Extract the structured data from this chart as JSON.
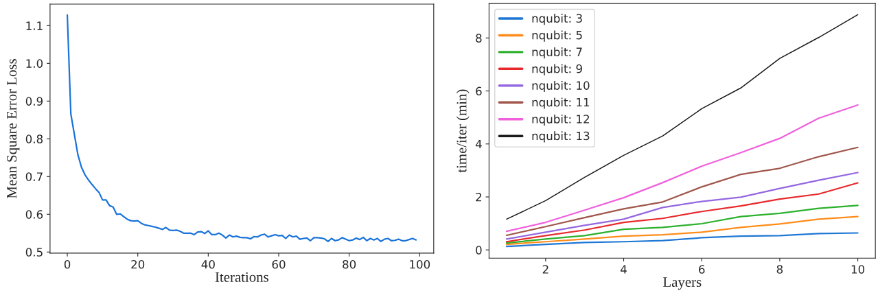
{
  "chart_data": [
    {
      "type": "line",
      "xlabel": "Iterations",
      "ylabel": "Mean Square Error Loss",
      "xlim": [
        -4.9,
        104
      ],
      "ylim": [
        0.497,
        1.157
      ],
      "xticks": [
        0,
        20,
        40,
        60,
        80,
        100
      ],
      "yticks": [
        0.5,
        0.6,
        0.7,
        0.8,
        0.9,
        {
          "value": 1.0,
          "label": "1.0"
        },
        1.1
      ],
      "grid": false,
      "legend": false,
      "x": [
        0,
        1,
        2,
        3,
        4,
        5,
        6,
        7,
        8,
        9,
        10,
        11,
        12,
        13,
        14,
        15,
        16,
        17,
        18,
        19,
        20,
        21,
        22,
        23,
        24,
        25,
        26,
        27,
        28,
        29,
        30,
        31,
        32,
        33,
        34,
        35,
        36,
        37,
        38,
        39,
        40,
        41,
        42,
        43,
        44,
        45,
        46,
        47,
        48,
        49,
        50,
        51,
        52,
        53,
        54,
        55,
        56,
        57,
        58,
        59,
        60,
        61,
        62,
        63,
        64,
        65,
        66,
        67,
        68,
        69,
        70,
        71,
        72,
        73,
        74,
        75,
        76,
        77,
        78,
        79,
        80,
        81,
        82,
        83,
        84,
        85,
        86,
        87,
        88,
        89,
        90,
        91,
        92,
        93,
        94,
        95,
        96,
        97,
        98,
        99
      ],
      "series": [
        {
          "color": "#1a73d9",
          "values": [
            1.128,
            0.866,
            0.812,
            0.758,
            0.725,
            0.705,
            0.691,
            0.679,
            0.668,
            0.658,
            0.638,
            0.638,
            0.623,
            0.619,
            0.6,
            0.601,
            0.594,
            0.587,
            0.583,
            0.582,
            0.583,
            0.576,
            0.572,
            0.57,
            0.568,
            0.566,
            0.563,
            0.56,
            0.565,
            0.558,
            0.557,
            0.558,
            0.555,
            0.55,
            0.55,
            0.55,
            0.546,
            0.553,
            0.554,
            0.549,
            0.556,
            0.546,
            0.546,
            0.55,
            0.545,
            0.537,
            0.545,
            0.54,
            0.542,
            0.539,
            0.538,
            0.538,
            0.535,
            0.541,
            0.54,
            0.545,
            0.547,
            0.54,
            0.543,
            0.546,
            0.543,
            0.544,
            0.536,
            0.545,
            0.54,
            0.542,
            0.534,
            0.536,
            0.537,
            0.53,
            0.538,
            0.538,
            0.537,
            0.535,
            0.528,
            0.536,
            0.53,
            0.532,
            0.538,
            0.534,
            0.53,
            0.532,
            0.537,
            0.533,
            0.539,
            0.53,
            0.536,
            0.532,
            0.536,
            0.528,
            0.534,
            0.536,
            0.53,
            0.531,
            0.534,
            0.53,
            0.53,
            0.533,
            0.536,
            0.532
          ]
        }
      ]
    },
    {
      "type": "line",
      "xlabel": "Layers",
      "ylabel": "time/iter (min)",
      "xlim": [
        0.55,
        10.45
      ],
      "ylim": [
        -0.31,
        9.3
      ],
      "xticks": [
        2,
        4,
        6,
        8,
        10
      ],
      "yticks": [
        0,
        2,
        4,
        6,
        8
      ],
      "grid": false,
      "legend": "top left",
      "x": [
        1,
        2,
        3,
        4,
        5,
        6,
        7,
        8,
        9,
        10
      ],
      "series": [
        {
          "name": "nqubit: 3",
          "color": "#1f77d4",
          "values": [
            0.13,
            0.21,
            0.28,
            0.31,
            0.35,
            0.46,
            0.52,
            0.54,
            0.62,
            0.64
          ]
        },
        {
          "name": "nqubit: 5",
          "color": "#ff8c1a",
          "values": [
            0.21,
            0.31,
            0.41,
            0.52,
            0.57,
            0.67,
            0.85,
            0.98,
            1.16,
            1.26
          ]
        },
        {
          "name": "nqubit: 7",
          "color": "#2cb02c",
          "values": [
            0.26,
            0.41,
            0.54,
            0.78,
            0.85,
            0.99,
            1.26,
            1.38,
            1.57,
            1.68
          ]
        },
        {
          "name": "nqubit: 9",
          "color": "#e8282a",
          "values": [
            0.31,
            0.54,
            0.75,
            1.04,
            1.19,
            1.45,
            1.66,
            1.92,
            2.11,
            2.53
          ]
        },
        {
          "name": "nqubit: 10",
          "color": "#9467e0",
          "values": [
            0.41,
            0.67,
            0.93,
            1.16,
            1.6,
            1.83,
            1.99,
            2.32,
            2.63,
            2.92
          ]
        },
        {
          "name": "nqubit: 11",
          "color": "#a0564b",
          "values": [
            0.55,
            0.88,
            1.22,
            1.55,
            1.81,
            2.38,
            2.85,
            3.08,
            3.52,
            3.87
          ]
        },
        {
          "name": "nqubit: 12",
          "color": "#f060dc",
          "values": [
            0.7,
            1.04,
            1.5,
            1.97,
            2.54,
            3.16,
            3.67,
            4.21,
            4.97,
            5.47
          ]
        },
        {
          "name": "nqubit: 13",
          "color": "#1a1a1a",
          "values": [
            1.16,
            1.86,
            2.74,
            3.57,
            4.3,
            5.33,
            6.11,
            7.23,
            8.02,
            8.88
          ]
        }
      ]
    }
  ]
}
